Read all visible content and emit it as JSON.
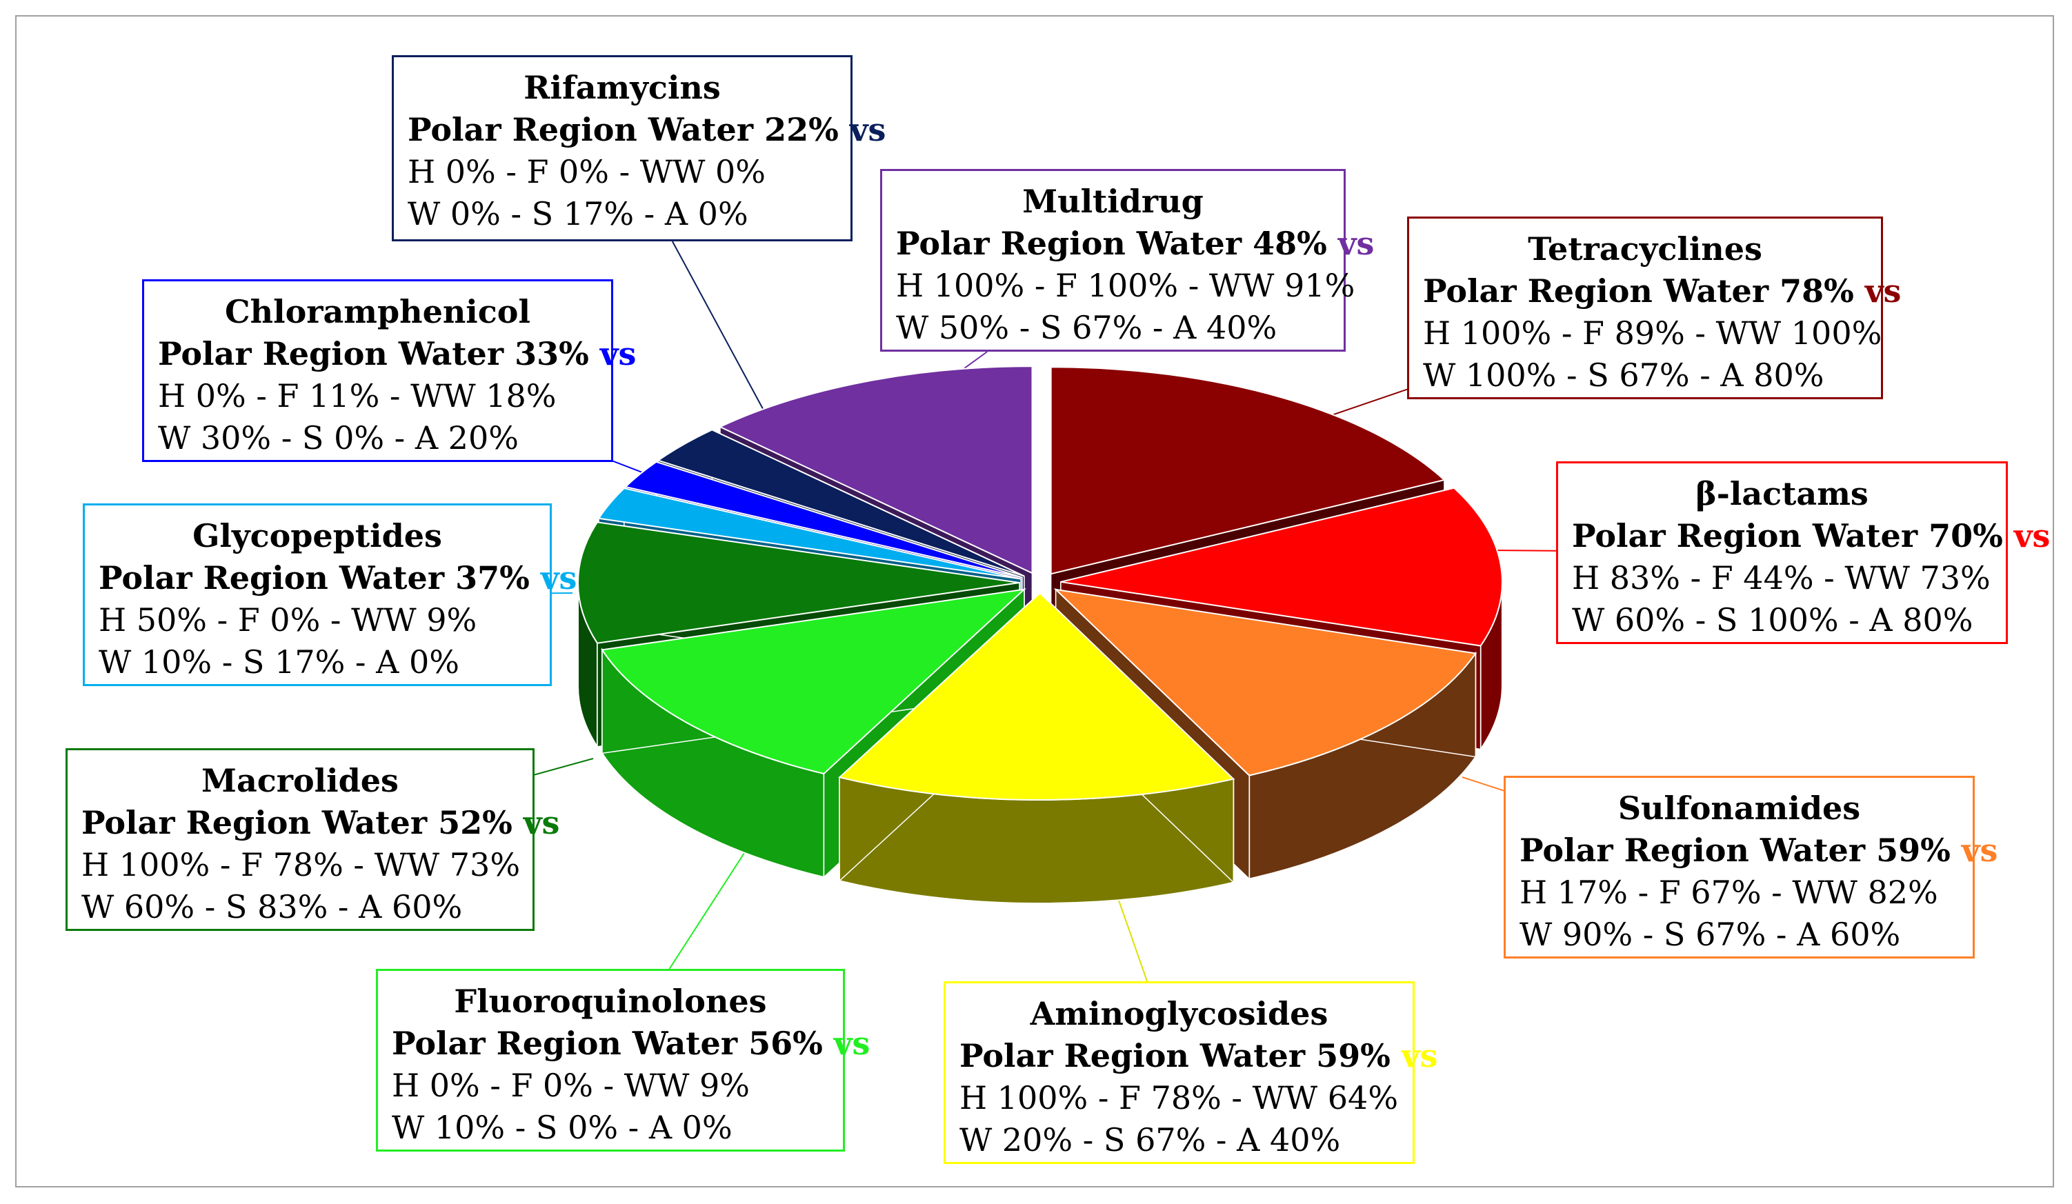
{
  "chart_data": {
    "type": "pie",
    "style": "3d-exploded",
    "title": "",
    "comparison_word": "vs",
    "series_label": "Polar Region Water",
    "slices": [
      {
        "name": "Tetracyclines",
        "polar": "78%",
        "line3": "H 100% - F 89% - WW 100%",
        "line4": "W 100% - S 67% - A 80%",
        "color": "#8B0000",
        "side": "#4a0000"
      },
      {
        "name": "β-lactams",
        "polar": "70%",
        "line3": "H 83% - F 44% - WW 73%",
        "line4": "W 60% - S 100% - A 80%",
        "color": "#FF0000",
        "side": "#7a0000"
      },
      {
        "name": "Sulfonamides",
        "polar": "59%",
        "line3": "H 17% - F 67% - WW 82%",
        "line4": "W 90% - S 67% - A 60%",
        "color": "#FF7F27",
        "side": "#6b3510"
      },
      {
        "name": "Aminoglycosides",
        "polar": "59%",
        "line3": "H 100% - F 78% - WW 64%",
        "line4": "W 20% - S 67% - A 40%",
        "color": "#FFFF00",
        "side": "#7a7a00"
      },
      {
        "name": "Fluoroquinolones",
        "polar": "56%",
        "line3": "H 0% - F 0% - WW 9%",
        "line4": "W 10% - S 0% - A 0%",
        "color": "#22EE22",
        "side": "#10a010"
      },
      {
        "name": "Macrolides",
        "polar": "52%",
        "line3": "H 100% - F 78% - WW 73%",
        "line4": "W 60% - S 83% - A 60%",
        "color": "#0A7A0A",
        "side": "#054a05"
      },
      {
        "name": "Glycopeptides",
        "polar": "37%",
        "line3": "H 50% - F 0% - WW 9%",
        "line4": "W 10% - S 17% - A 0%",
        "color": "#00AEEF",
        "side": "#005f85"
      },
      {
        "name": "Chloramphenicol",
        "polar": "33%",
        "line3": "H 0% - F 11% - WW 18%",
        "line4": "W 30% - S 0% - A 20%",
        "color": "#0000FF",
        "side": "#00008a"
      },
      {
        "name": "Rifamycins",
        "polar": "22%",
        "line3": "H 0% - F 0% - WW 0%",
        "line4": "W 0% - S 17% - A 0%",
        "color": "#0A1F5C",
        "side": "#050f30"
      },
      {
        "name": "Multidrug",
        "polar": "48%",
        "line3": "H 100% - F 100% - WW 91%",
        "line4": "W 50% - S 67% - A 40%",
        "color": "#7030A0",
        "side": "#3d1a58"
      }
    ]
  }
}
